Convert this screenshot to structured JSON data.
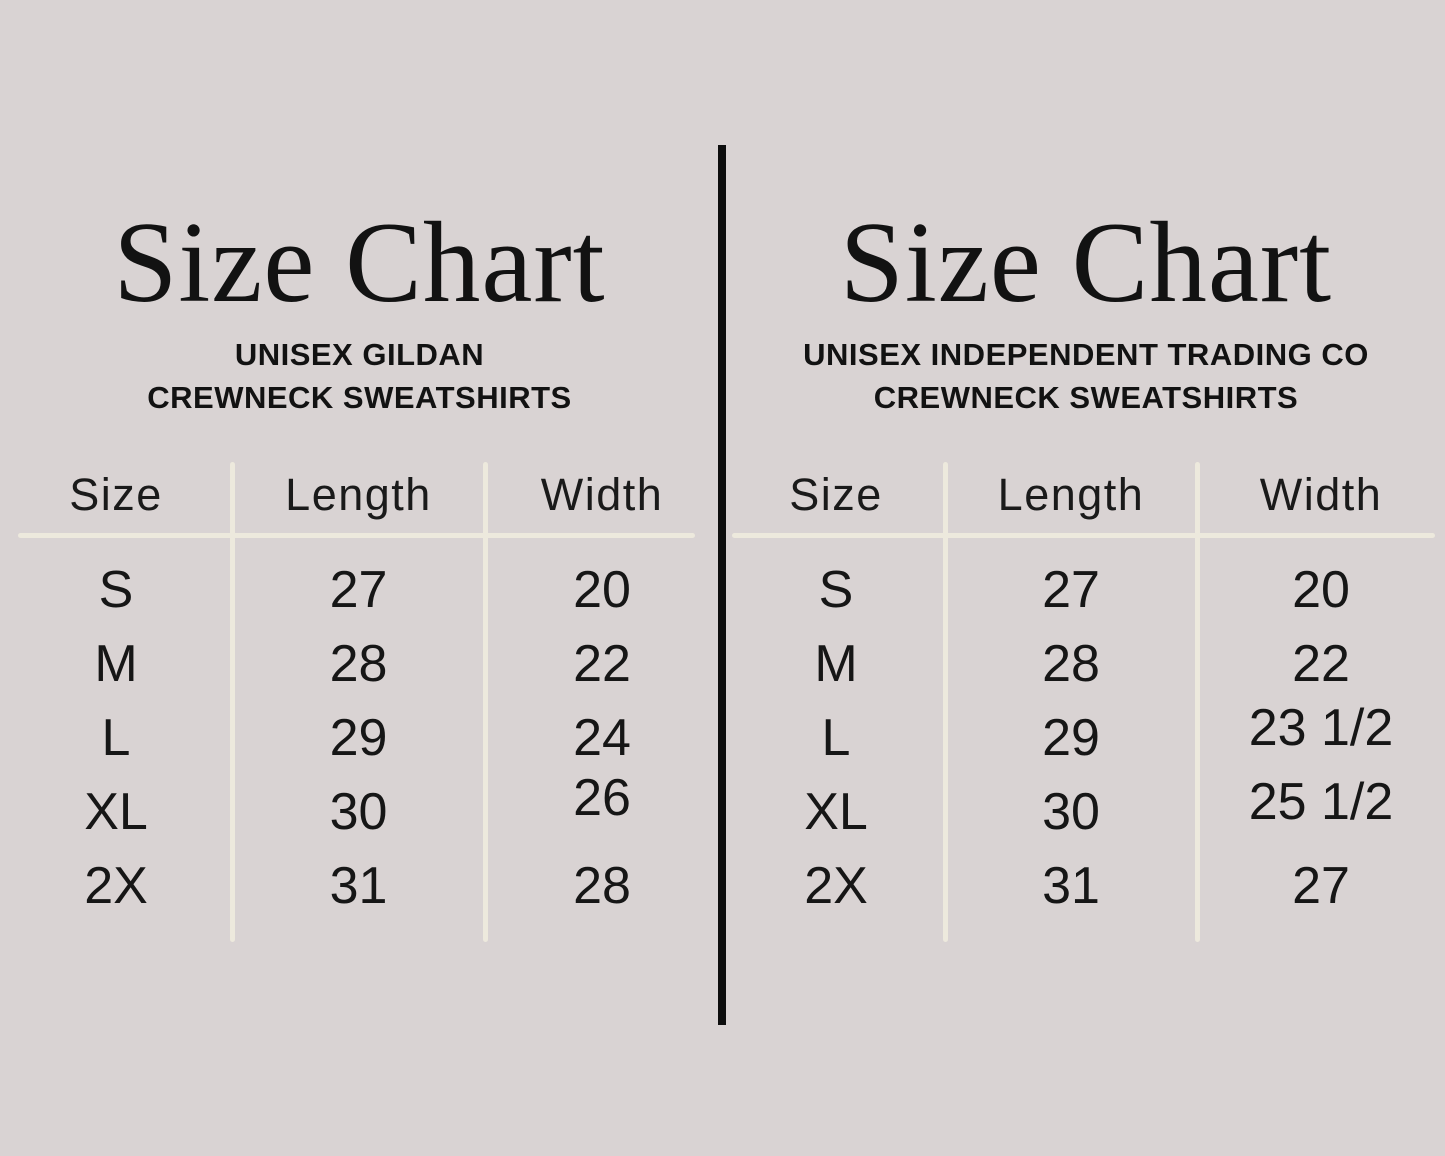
{
  "page": {
    "background_color": "#d9d3d3",
    "divider_color": "#0d0d0d",
    "rule_line_color": "#ede9dd",
    "text_color": "#141414"
  },
  "panels": [
    {
      "title": "Size Chart",
      "subtitle_lines": [
        "UNISEX GILDAN",
        "CREWNECK SWEATSHIRTS"
      ],
      "columns": [
        "Size",
        "Length",
        "Width"
      ],
      "rows": [
        {
          "size": "S",
          "length": "27",
          "width": "20"
        },
        {
          "size": "M",
          "length": "28",
          "width": "22"
        },
        {
          "size": "L",
          "length": "29",
          "width": "24"
        },
        {
          "size": "XL",
          "length": "30",
          "width": "26"
        },
        {
          "size": "2X",
          "length": "31",
          "width": "28"
        }
      ]
    },
    {
      "title": "Size Chart",
      "subtitle_lines": [
        "UNISEX INDEPENDENT TRADING CO",
        "CREWNECK SWEATSHIRTS"
      ],
      "columns": [
        "Size",
        "Length",
        "Width"
      ],
      "rows": [
        {
          "size": "S",
          "length": "27",
          "width": "20"
        },
        {
          "size": "M",
          "length": "28",
          "width": "22"
        },
        {
          "size": "L",
          "length": "29",
          "width": "23 1/2"
        },
        {
          "size": "XL",
          "length": "30",
          "width": "25 1/2"
        },
        {
          "size": "2X",
          "length": "31",
          "width": "27"
        }
      ]
    }
  ]
}
